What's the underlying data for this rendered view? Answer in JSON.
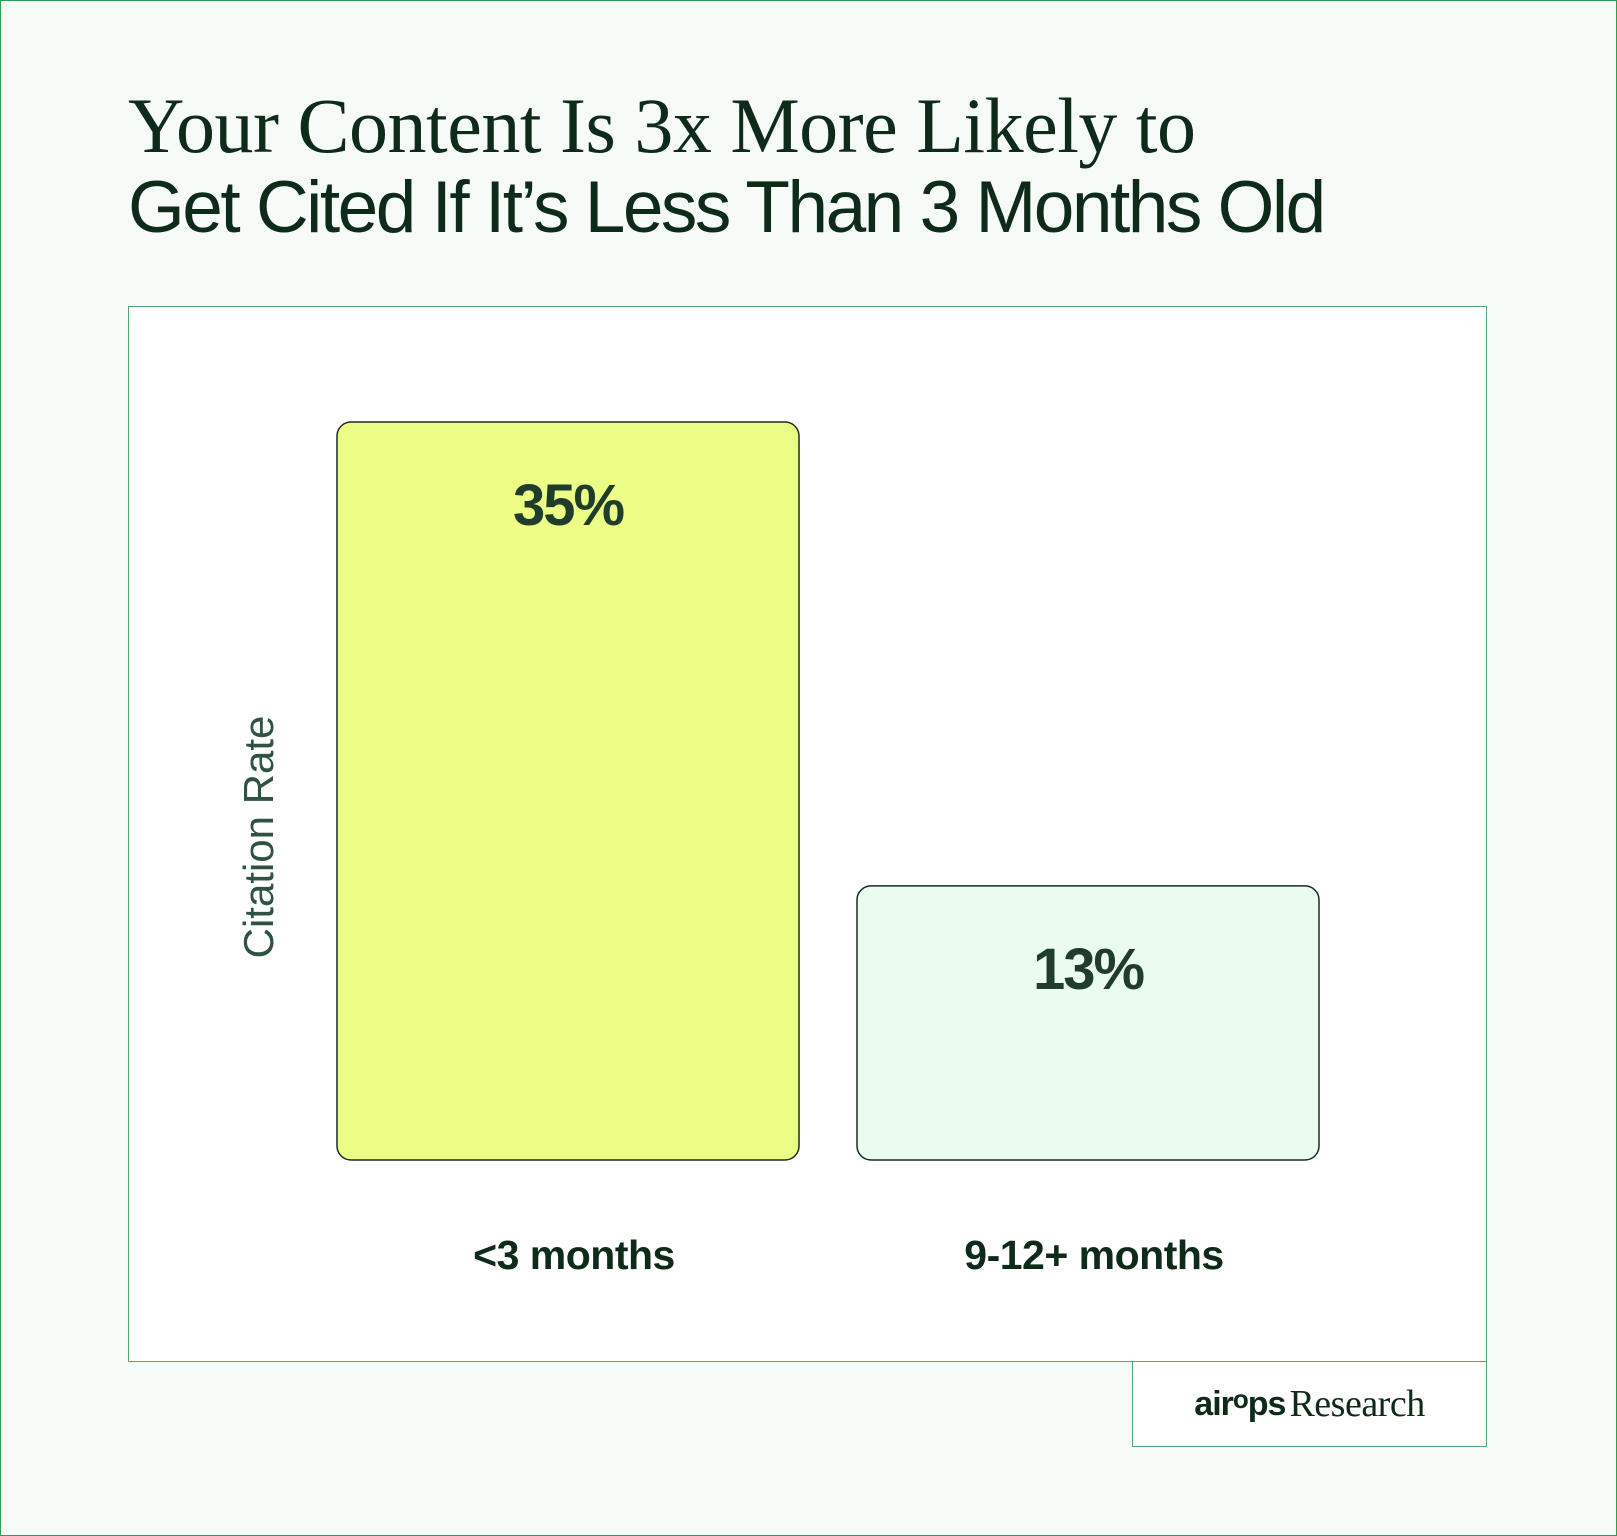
{
  "title": {
    "line1": "Your Content Is 3x More Likely to",
    "line2": "Get Cited If It’s Less Than 3 Months Old"
  },
  "brand": {
    "logo": "airops",
    "suffix": "Research"
  },
  "chart_data": {
    "type": "bar",
    "title": "",
    "xlabel": "",
    "ylabel": "Citation Rate",
    "categories": [
      "<3 months",
      "9-12+ months"
    ],
    "values": [
      35,
      13
    ],
    "data_labels": [
      "35%",
      "13%"
    ],
    "bar_colors": [
      "#edfe86",
      "#e9fcef"
    ],
    "ylim": [
      0,
      35
    ],
    "grid": false,
    "legend": "none"
  },
  "colors": {
    "background": "#f6fbf7",
    "frame": "#2e9c4a",
    "text_dark": "#0e2a19",
    "axis_label": "#2f5340"
  }
}
